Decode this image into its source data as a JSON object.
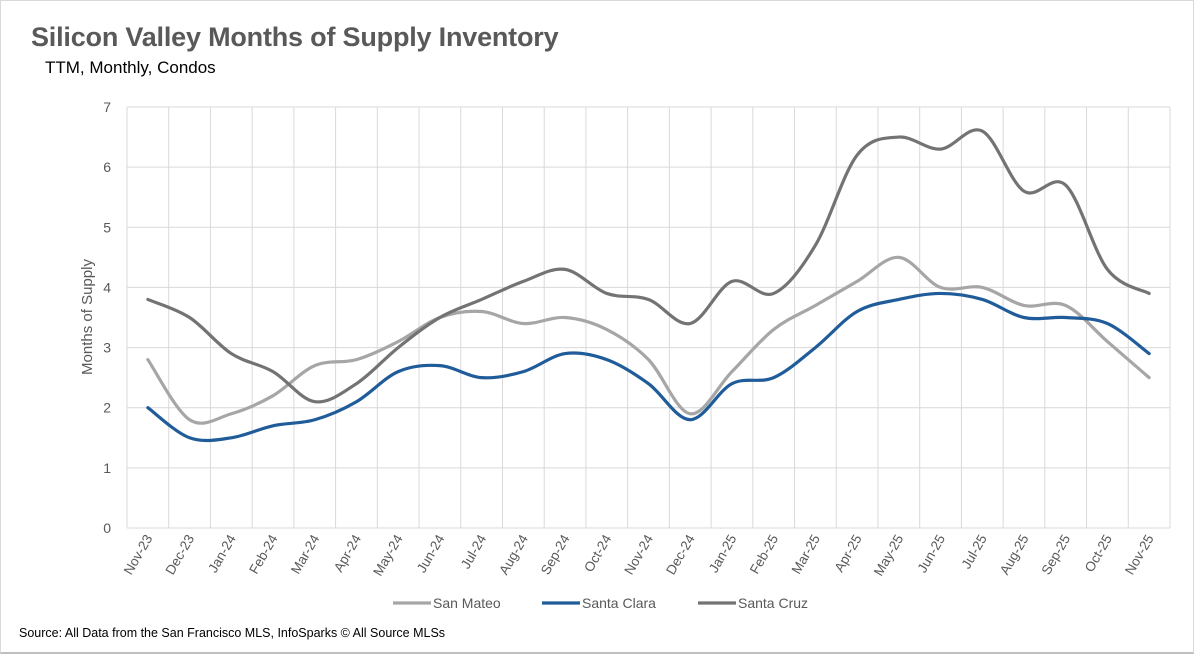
{
  "header": {
    "title": "Silicon Valley Months of Supply Inventory",
    "subtitle": "TTM, Monthly, Condos"
  },
  "footer": {
    "source": "Source: All Data from the San Francisco MLS, InfoSparks © All Source MLSs"
  },
  "chart_data": {
    "type": "line",
    "title": "Silicon Valley Months of Supply Inventory",
    "subtitle": "TTM, Monthly, Condos",
    "xlabel": "",
    "ylabel": "Months of Supply",
    "ylim": [
      0,
      7
    ],
    "yticks": [
      "0",
      "1",
      "2",
      "3",
      "4",
      "5",
      "6",
      "7"
    ],
    "grid": true,
    "legend": "bottom",
    "categories": [
      "Nov-23",
      "Dec-23",
      "Jan-24",
      "Feb-24",
      "Mar-24",
      "Apr-24",
      "May-24",
      "Jun-24",
      "Jul-24",
      "Aug-24",
      "Sep-24",
      "Oct-24",
      "Nov-24",
      "Dec-24",
      "Jan-25",
      "Feb-25",
      "Mar-25",
      "Apr-25",
      "May-25",
      "Jun-25",
      "Jul-25",
      "Aug-25",
      "Sep-25",
      "Oct-25",
      "Nov-25"
    ],
    "series": [
      {
        "name": "San Mateo",
        "color": "#a6a6a6",
        "values": [
          2.8,
          1.8,
          1.9,
          2.2,
          2.7,
          2.8,
          3.1,
          3.5,
          3.6,
          3.4,
          3.5,
          3.3,
          2.8,
          1.9,
          2.6,
          3.3,
          3.7,
          4.1,
          4.5,
          4.0,
          4.0,
          3.7,
          3.7,
          3.1,
          2.5
        ]
      },
      {
        "name": "Santa Clara",
        "color": "#1f5c99",
        "values": [
          2.0,
          1.5,
          1.5,
          1.7,
          1.8,
          2.1,
          2.6,
          2.7,
          2.5,
          2.6,
          2.9,
          2.8,
          2.4,
          1.8,
          2.4,
          2.5,
          3.0,
          3.6,
          3.8,
          3.9,
          3.8,
          3.5,
          3.5,
          3.4,
          2.9
        ]
      },
      {
        "name": "Santa Cruz",
        "color": "#737373",
        "values": [
          3.8,
          3.5,
          2.9,
          2.6,
          2.1,
          2.4,
          3.0,
          3.5,
          3.8,
          4.1,
          4.3,
          3.9,
          3.8,
          3.4,
          4.1,
          3.9,
          4.7,
          6.2,
          6.5,
          6.3,
          6.6,
          5.6,
          5.7,
          4.3,
          3.9
        ]
      }
    ]
  }
}
